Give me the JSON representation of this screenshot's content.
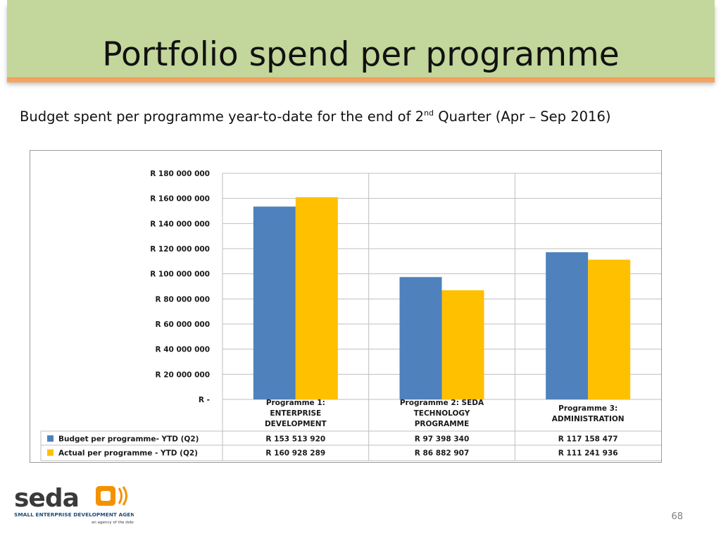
{
  "slide": {
    "title": "Portfolio spend per programme",
    "subtitle_before": "Budget spent per programme year-to-date for the end of 2",
    "subtitle_sup": "nd",
    "subtitle_after": " Quarter (Apr – Sep 2016)",
    "page_number": "68"
  },
  "logo": {
    "wordmark": "seda",
    "tagline": "SMALL ENTERPRISE DEVELOPMENT AGENCY",
    "subtag": "an agency of the dsbd",
    "colors": {
      "wordmark": "#3a3a3a",
      "orange": "#f39200",
      "tagline": "#1f4e79"
    }
  },
  "chart_data": {
    "type": "bar",
    "categories": [
      [
        "Programme 1:",
        "ENTERPRISE",
        "DEVELOPMENT"
      ],
      [
        "Programme 2: SEDA",
        "TECHNOLOGY",
        "PROGRAMME"
      ],
      [
        "Programme 3:",
        "ADMINISTRATION"
      ]
    ],
    "series": [
      {
        "name": "Budget per programme- YTD (Q2)",
        "color": "#4f81bd",
        "values": [
          153513920,
          97398340,
          117158477
        ],
        "labels": [
          "R 153 513 920",
          "R 97 398 340",
          "R 117 158 477"
        ]
      },
      {
        "name": "Actual per programme - YTD (Q2)",
        "color": "#ffc000",
        "values": [
          160928289,
          86882907,
          111241936
        ],
        "labels": [
          "R 160 928 289",
          "R 86 882 907",
          "R 111 241 936"
        ]
      }
    ],
    "ylim": [
      0,
      180000000
    ],
    "yticks": [
      0,
      20000000,
      40000000,
      60000000,
      80000000,
      100000000,
      120000000,
      140000000,
      160000000,
      180000000
    ],
    "ytick_labels": [
      "R -",
      "R 20 000 000",
      "R 40 000 000",
      "R 60 000 000",
      "R 80 000 000",
      "R 100 000 000",
      "R 120 000 000",
      "R 140 000 000",
      "R 160 000 000",
      "R 180 000 000"
    ],
    "grid": true,
    "legend": "data-table"
  }
}
